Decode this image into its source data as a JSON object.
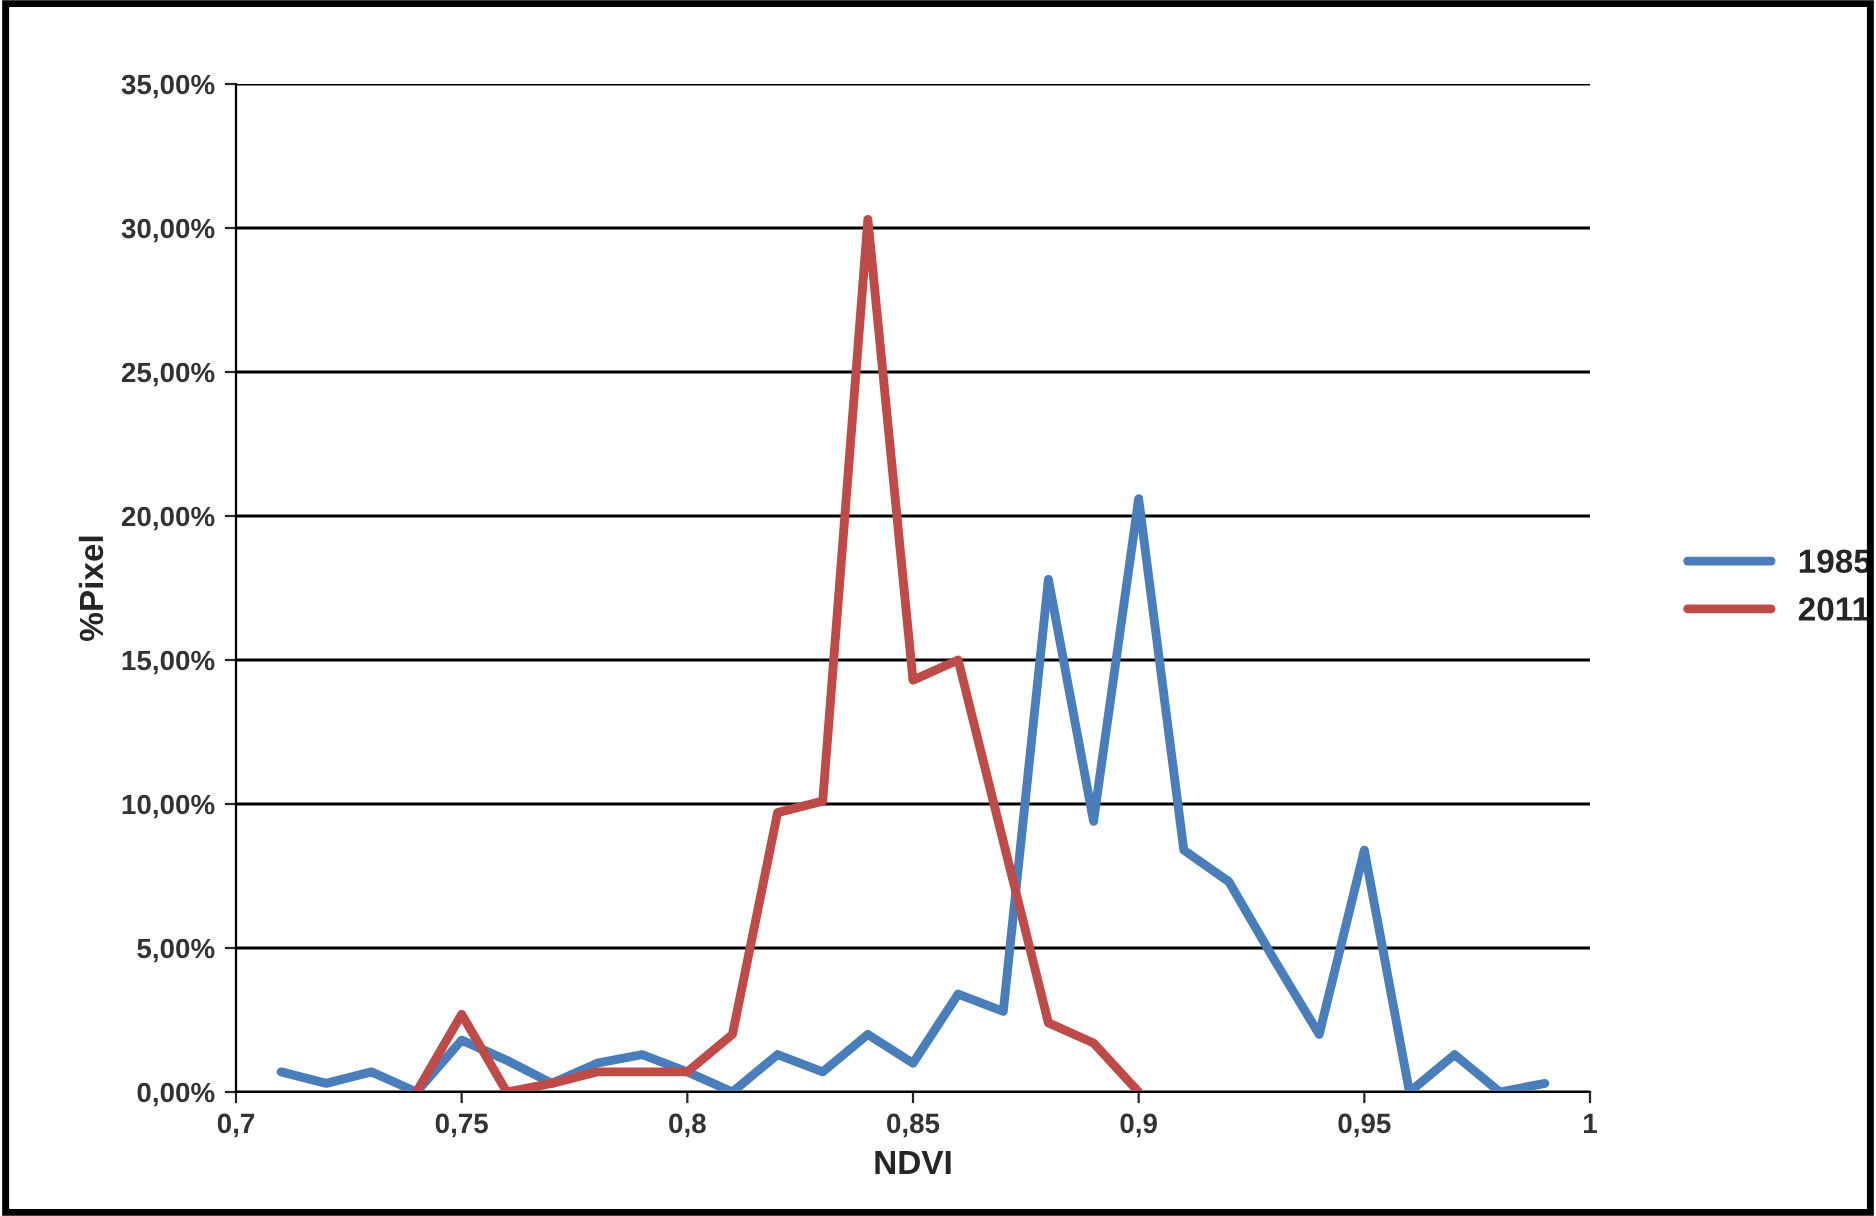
{
  "chart_data": {
    "type": "line",
    "xlabel": "NDVI",
    "ylabel": "%Pixel",
    "series": [
      {
        "name": "1985",
        "color": "#4a7ebb",
        "x": [
          0.71,
          0.72,
          0.73,
          0.74,
          0.75,
          0.76,
          0.77,
          0.78,
          0.79,
          0.8,
          0.81,
          0.82,
          0.83,
          0.84,
          0.85,
          0.86,
          0.87,
          0.88,
          0.89,
          0.9,
          0.91,
          0.92,
          0.93,
          0.94,
          0.95,
          0.96,
          0.97,
          0.98,
          0.99
        ],
        "values": [
          0.7,
          0.3,
          0.7,
          0,
          1.8,
          1.1,
          0.3,
          1.0,
          1.3,
          0.7,
          0,
          1.3,
          0.7,
          2.0,
          1.0,
          3.4,
          2.8,
          17.8,
          9.4,
          20.6,
          8.4,
          7.3,
          4.6,
          2.0,
          8.4,
          0,
          1.3,
          0,
          0.3
        ]
      },
      {
        "name": "2011",
        "color": "#be4b48",
        "x": [
          0.74,
          0.75,
          0.76,
          0.77,
          0.78,
          0.79,
          0.8,
          0.81,
          0.82,
          0.83,
          0.84,
          0.85,
          0.86,
          0.87,
          0.88,
          0.89,
          0.9
        ],
        "values": [
          0,
          2.7,
          0,
          0.3,
          0.7,
          0.7,
          0.7,
          2.0,
          9.7,
          10.1,
          30.3,
          14.3,
          15.0,
          8.7,
          2.4,
          1.7,
          0
        ]
      }
    ],
    "xlim": [
      0.7,
      1
    ],
    "xticks": [
      {
        "value": 0.7,
        "label": "0,7"
      },
      {
        "value": 0.75,
        "label": "0,75"
      },
      {
        "value": 0.8,
        "label": "0,8"
      },
      {
        "value": 0.85,
        "label": "0,85"
      },
      {
        "value": 0.9,
        "label": "0,9"
      },
      {
        "value": 0.95,
        "label": "0,95"
      },
      {
        "value": 1,
        "label": "1"
      }
    ],
    "ylim": [
      0,
      35
    ],
    "yticks": [
      {
        "value": 0,
        "label": "0,00%"
      },
      {
        "value": 5,
        "label": "5,00%"
      },
      {
        "value": 10,
        "label": "10,00%"
      },
      {
        "value": 15,
        "label": "15,00%"
      },
      {
        "value": 20,
        "label": "20,00%"
      },
      {
        "value": 25,
        "label": "25,00%"
      },
      {
        "value": 30,
        "label": "30,00%"
      },
      {
        "value": 35,
        "label": "35,00%"
      }
    ],
    "grid": "y",
    "legend": "right",
    "line_style": "solid"
  }
}
